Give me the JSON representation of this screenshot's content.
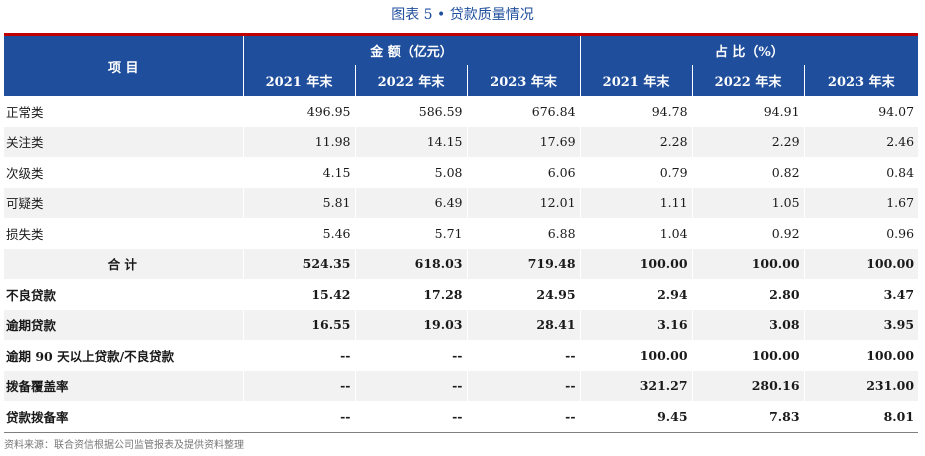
{
  "title": "图表 5 • 贷款质量情况",
  "header": {
    "item": "项 目",
    "amount_group": "金 额（亿元）",
    "ratio_group": "占 比（%）",
    "years": [
      "2021 年末",
      "2022 年末",
      "2023 年末",
      "2021 年末",
      "2022 年末",
      "2023 年末"
    ]
  },
  "rows": [
    {
      "label": "正常类",
      "values": [
        "496.95",
        "586.59",
        "676.84",
        "94.78",
        "94.91",
        "94.07"
      ]
    },
    {
      "label": "关注类",
      "values": [
        "11.98",
        "14.15",
        "17.69",
        "2.28",
        "2.29",
        "2.46"
      ]
    },
    {
      "label": "次级类",
      "values": [
        "4.15",
        "5.08",
        "6.06",
        "0.79",
        "0.82",
        "0.84"
      ]
    },
    {
      "label": "可疑类",
      "values": [
        "5.81",
        "6.49",
        "12.01",
        "1.11",
        "1.05",
        "1.67"
      ]
    },
    {
      "label": "损失类",
      "values": [
        "5.46",
        "5.71",
        "6.88",
        "1.04",
        "0.92",
        "0.96"
      ]
    },
    {
      "label": "合 计",
      "values": [
        "524.35",
        "618.03",
        "719.48",
        "100.00",
        "100.00",
        "100.00"
      ]
    },
    {
      "label": "不良贷款",
      "values": [
        "15.42",
        "17.28",
        "24.95",
        "2.94",
        "2.80",
        "3.47"
      ]
    },
    {
      "label": "逾期贷款",
      "values": [
        "16.55",
        "19.03",
        "28.41",
        "3.16",
        "3.08",
        "3.95"
      ]
    },
    {
      "label": "逾期 90 天以上贷款/不良贷款",
      "values": [
        "--",
        "--",
        "--",
        "100.00",
        "100.00",
        "100.00"
      ]
    },
    {
      "label": "拨备覆盖率",
      "values": [
        "--",
        "--",
        "--",
        "321.27",
        "280.16",
        "231.00"
      ]
    },
    {
      "label": "贷款拨备率",
      "values": [
        "--",
        "--",
        "--",
        "9.45",
        "7.83",
        "8.01"
      ]
    }
  ],
  "source_note": "资料来源：联合资信根据公司监管报表及提供资料整理"
}
